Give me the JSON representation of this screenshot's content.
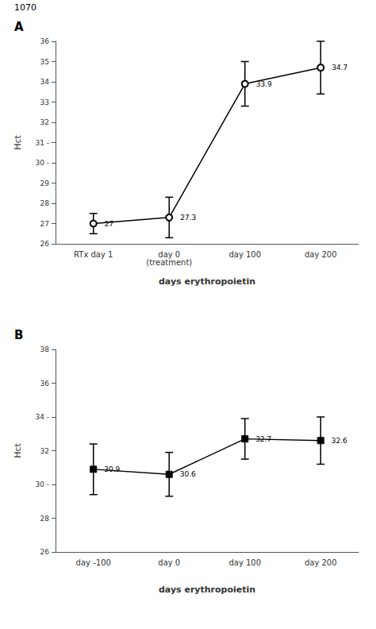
{
  "chart_data": [
    {
      "type": "line",
      "title": "A",
      "annotations": [
        "1070"
      ],
      "categories": [
        "RTx day 1",
        "day 0\n(treatment)",
        "day 100",
        "day 200"
      ],
      "series": [
        {
          "values": [
            27.0,
            27.3,
            33.9,
            34.7
          ],
          "errors": [
            0.5,
            1.0,
            1.1,
            1.3
          ],
          "color": "black",
          "marker": "emptyCircle"
        }
      ],
      "x_label": "days erythropoietin",
      "y_label": "Hct",
      "ylim": [
        26,
        36
      ],
      "yticks": [
        26,
        27,
        28,
        29,
        {
          "value": 30,
          "label": "30 -"
        },
        {
          "value": 31,
          "label": "31 -"
        },
        32,
        33,
        34,
        35,
        36
      ],
      "grid": false,
      "data_labels": true
    },
    {
      "type": "line",
      "title": "B",
      "categories": [
        "day -100",
        "day 0",
        "day 100",
        "day 200"
      ],
      "series": [
        {
          "values": [
            30.9,
            30.6,
            32.7,
            32.6
          ],
          "errors": [
            1.5,
            1.3,
            1.2,
            1.4
          ],
          "color": "black",
          "marker": "square"
        }
      ],
      "x_label": "days erythropoietin",
      "y_label": "Hct",
      "ylim": [
        26,
        38
      ],
      "yticks": [
        26,
        28,
        {
          "value": 30,
          "label": "30 -"
        },
        32,
        {
          "value": 34,
          "label": "34 -"
        },
        36,
        38
      ],
      "grid": false,
      "data_labels": true
    }
  ]
}
